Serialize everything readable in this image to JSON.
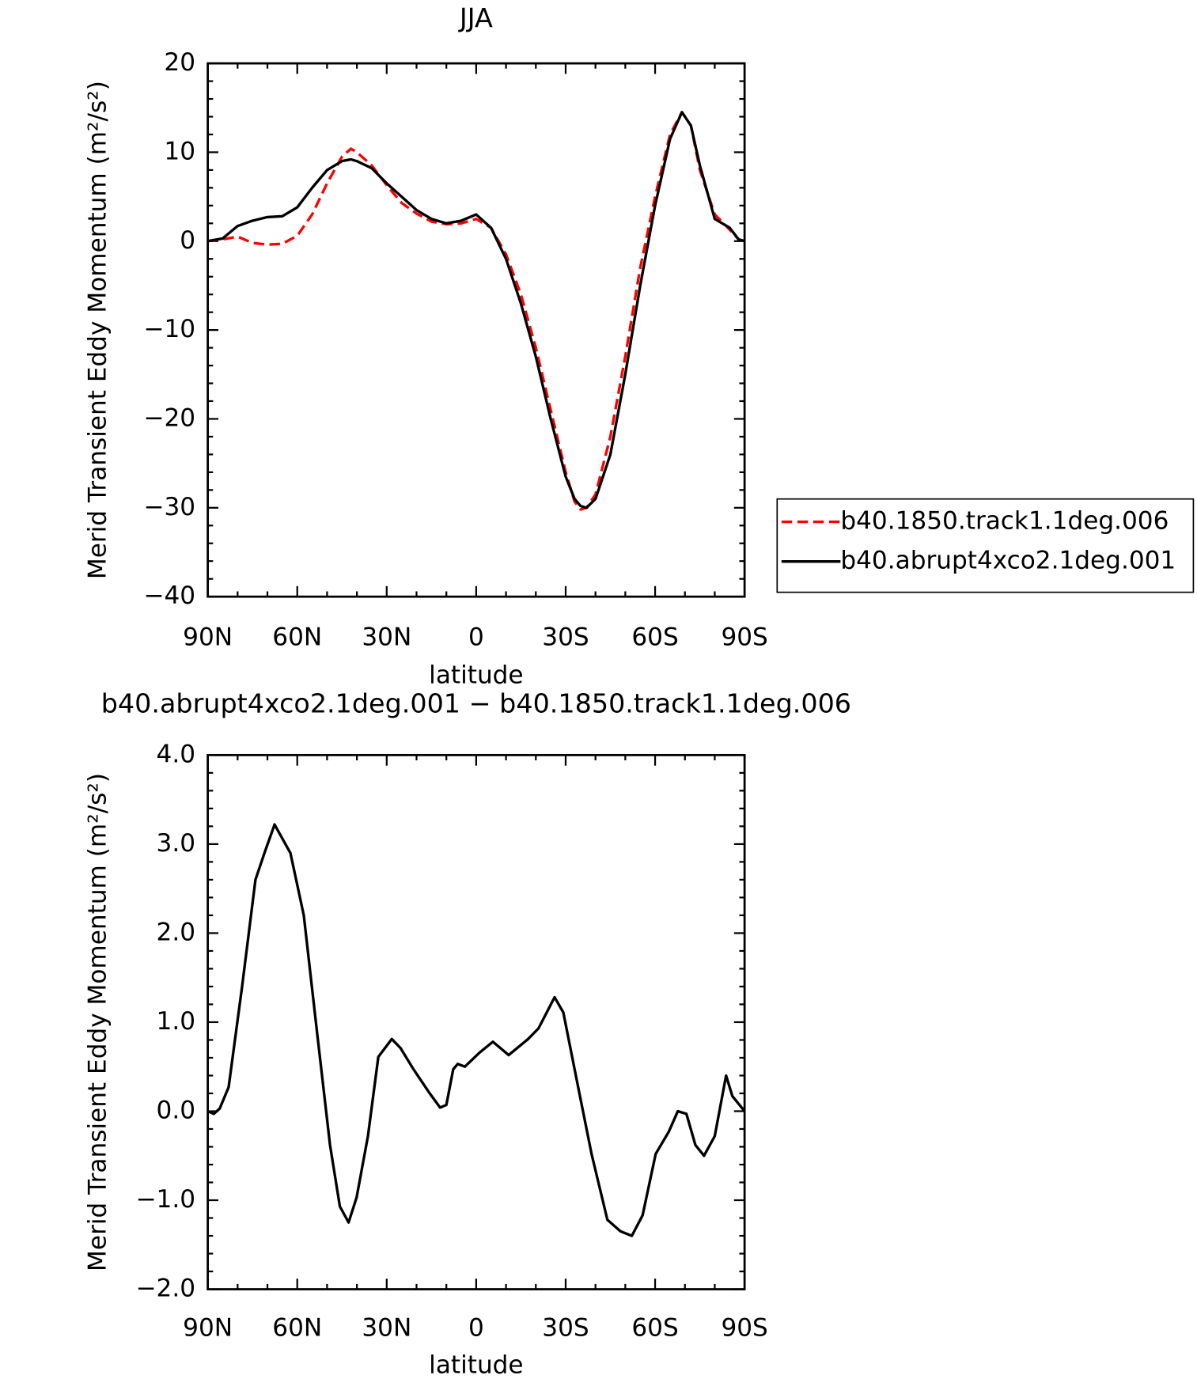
{
  "chart_data": [
    {
      "type": "line",
      "title": "JJA",
      "xlabel": "latitude",
      "ylabel": "Merid Transient Eddy Momentum (m²/s²)",
      "x": [
        90,
        85,
        80,
        75,
        70,
        65,
        60,
        55,
        50,
        45,
        42,
        40,
        35,
        30,
        25,
        20,
        15,
        10,
        5,
        0,
        -5,
        -10,
        -15,
        -20,
        -25,
        -30,
        -33,
        -35,
        -37,
        -40,
        -45,
        -50,
        -55,
        -60,
        -65,
        -69,
        -72,
        -75,
        -80,
        -85,
        -88,
        -90
      ],
      "series": [
        {
          "name": "b40.1850.track1.1deg.006",
          "color": "#ff0000",
          "dashed": true,
          "values": [
            0,
            0.2,
            0.5,
            -0.2,
            -0.4,
            -0.3,
            0.6,
            3,
            6.5,
            9.5,
            10.4,
            10,
            8.5,
            6.3,
            4.3,
            3.1,
            2.2,
            1.9,
            2,
            2.5,
            1.5,
            -1.5,
            -6,
            -12,
            -19,
            -26,
            -29.3,
            -30.2,
            -30,
            -28.5,
            -22,
            -13,
            -3,
            5,
            12,
            14.5,
            13,
            8,
            3,
            1.3,
            0.2,
            0
          ]
        },
        {
          "name": "b40.abrupt4xco2.1deg.001",
          "color": "#000000",
          "dashed": false,
          "values": [
            0,
            0.3,
            1.7,
            2.3,
            2.7,
            2.8,
            3.8,
            6,
            8,
            9,
            9.2,
            9,
            8.2,
            6.5,
            5,
            3.5,
            2.5,
            2,
            2.3,
            3,
            1.5,
            -2,
            -7,
            -13,
            -20,
            -26.5,
            -29,
            -29.8,
            -30,
            -29,
            -24,
            -15,
            -5,
            4,
            11.5,
            14.5,
            13,
            8.5,
            2.5,
            1.5,
            0.2,
            0
          ]
        }
      ],
      "xlim": [
        90,
        -90
      ],
      "xticks": [
        {
          "value": 90,
          "label": "90N"
        },
        {
          "value": 60,
          "label": "60N"
        },
        {
          "value": 30,
          "label": "30N"
        },
        0,
        {
          "value": -30,
          "label": "30S"
        },
        {
          "value": -60,
          "label": "60S"
        },
        {
          "value": -90,
          "label": "90S"
        }
      ],
      "ylim": [
        -40,
        20
      ],
      "yticks": [
        20,
        10,
        0,
        {
          "value": -10,
          "label": "−10"
        },
        {
          "value": -20,
          "label": "−20"
        },
        {
          "value": -30,
          "label": "−30"
        },
        {
          "value": -40,
          "label": "−40"
        }
      ],
      "legend": "right"
    },
    {
      "type": "line",
      "title": "b40.abrupt4xco2.1deg.001 − b40.1850.track1.1deg.006",
      "xlabel": "latitude",
      "ylabel": "Merid Transient Eddy Momentum (m²/s²)",
      "x": [
        90,
        88,
        86,
        83,
        78.5,
        74,
        71,
        67.6,
        62.3,
        57.8,
        53.4,
        49,
        45.7,
        42.8,
        40.1,
        36.3,
        32.8,
        28.3,
        25.4,
        21,
        16,
        12.1,
        10,
        7.7,
        6.2,
        3.8,
        -1.2,
        -5.6,
        -10.9,
        -17.4,
        -20.9,
        -26.3,
        -29.2,
        -34.2,
        -38.7,
        -44,
        -48.4,
        -52.2,
        -55.8,
        -60.2,
        -64.6,
        -67.6,
        -70.5,
        -73.5,
        -76.4,
        -80,
        -83.8,
        -85.9,
        -90
      ],
      "values": [
        0,
        -0.03,
        0.03,
        0.27,
        1.4,
        2.6,
        2.9,
        3.22,
        2.9,
        2.2,
        0.9,
        -0.38,
        -1.07,
        -1.25,
        -0.97,
        -0.28,
        0.61,
        0.81,
        0.71,
        0.47,
        0.22,
        0.04,
        0.07,
        0.47,
        0.53,
        0.5,
        0.66,
        0.78,
        0.63,
        0.81,
        0.93,
        1.28,
        1.11,
        0.27,
        -0.48,
        -1.22,
        -1.35,
        -1.4,
        -1.17,
        -0.48,
        -0.23,
        0,
        -0.03,
        -0.38,
        -0.5,
        -0.28,
        0.4,
        0.17,
        0
      ],
      "color": "#000000",
      "xlim": [
        90,
        -90
      ],
      "xticks": [
        {
          "value": 90,
          "label": "90N"
        },
        {
          "value": 60,
          "label": "60N"
        },
        {
          "value": 30,
          "label": "30N"
        },
        0,
        {
          "value": -30,
          "label": "30S"
        },
        {
          "value": -60,
          "label": "60S"
        },
        {
          "value": -90,
          "label": "90S"
        }
      ],
      "ylim": [
        -2,
        4
      ],
      "yticks": [
        {
          "value": 4,
          "label": "4.0"
        },
        {
          "value": 3,
          "label": "3.0"
        },
        {
          "value": 2,
          "label": "2.0"
        },
        {
          "value": 1,
          "label": "1.0"
        },
        {
          "value": 0,
          "label": "0.0"
        },
        {
          "value": -1,
          "label": "−1.0"
        },
        {
          "value": -2,
          "label": "−2.0"
        }
      ]
    }
  ]
}
